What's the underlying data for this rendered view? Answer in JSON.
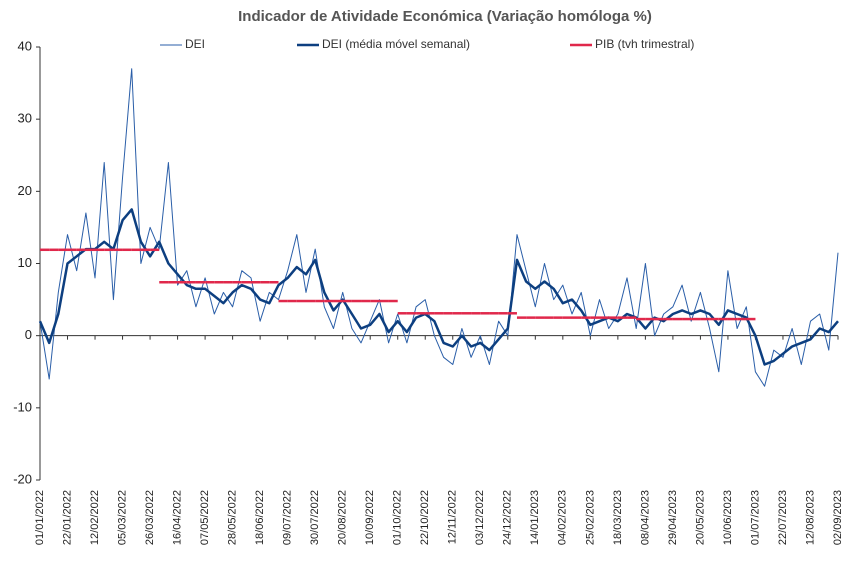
{
  "chart_data": {
    "type": "line",
    "title": "Indicador de Atividade Económica (Variação homóloga %)",
    "x": [
      "01/01/2022",
      "08/01/2022",
      "15/01/2022",
      "22/01/2022",
      "29/01/2022",
      "05/02/2022",
      "12/02/2022",
      "19/02/2022",
      "26/02/2022",
      "05/03/2022",
      "12/03/2022",
      "19/03/2022",
      "26/03/2022",
      "02/04/2022",
      "09/04/2022",
      "16/04/2022",
      "23/04/2022",
      "30/04/2022",
      "07/05/2022",
      "14/05/2022",
      "21/05/2022",
      "28/05/2022",
      "04/06/2022",
      "11/06/2022",
      "18/06/2022",
      "25/06/2022",
      "02/07/2022",
      "09/07/2022",
      "16/07/2022",
      "23/07/2022",
      "30/07/2022",
      "06/08/2022",
      "13/08/2022",
      "20/08/2022",
      "27/08/2022",
      "03/09/2022",
      "10/09/2022",
      "17/09/2022",
      "24/09/2022",
      "01/10/2022",
      "08/10/2022",
      "15/10/2022",
      "22/10/2022",
      "29/10/2022",
      "05/11/2022",
      "12/11/2022",
      "19/11/2022",
      "26/11/2022",
      "03/12/2022",
      "10/12/2022",
      "17/12/2022",
      "24/12/2022",
      "31/12/2022",
      "07/01/2023",
      "14/01/2023",
      "21/01/2023",
      "28/01/2023",
      "04/02/2023",
      "11/02/2023",
      "18/02/2023",
      "25/02/2023",
      "04/03/2023",
      "11/03/2023",
      "18/03/2023",
      "25/03/2023",
      "01/04/2023",
      "08/04/2023",
      "15/04/2023",
      "22/04/2023",
      "29/04/2023",
      "06/05/2023",
      "13/05/2023",
      "20/05/2023",
      "27/05/2023",
      "03/06/2023",
      "10/06/2023",
      "17/06/2023",
      "24/06/2023",
      "01/07/2023",
      "08/07/2023",
      "15/07/2023",
      "22/07/2023",
      "29/07/2023",
      "05/08/2023",
      "12/08/2023",
      "19/08/2023",
      "26/08/2023",
      "02/09/2023"
    ],
    "series": [
      {
        "name": "DEI",
        "color": "#2a5ea8",
        "width": 1,
        "values": [
          2,
          -6,
          6,
          14,
          9,
          17,
          8,
          24,
          5,
          22,
          37,
          10,
          15,
          12,
          24,
          7,
          9,
          4,
          8,
          3,
          6,
          4,
          9,
          8,
          2,
          6,
          5,
          9,
          14,
          6,
          12,
          4,
          1,
          6,
          1,
          -1,
          2,
          5,
          -1,
          3,
          -1,
          4,
          5,
          0,
          -3,
          -4,
          1,
          -3,
          0,
          -4,
          2,
          0,
          14,
          9,
          4,
          10,
          5,
          7,
          3,
          6,
          0,
          5,
          1,
          3,
          8,
          1,
          10,
          0,
          3,
          4,
          7,
          2,
          6,
          1,
          -5,
          9,
          1,
          4,
          -5,
          -7,
          -2,
          -3,
          1,
          -4,
          2,
          3,
          -2,
          11.5
        ]
      },
      {
        "name": "DEI (média móvel semanal)",
        "color": "#0d3f80",
        "width": 2.5,
        "values": [
          2,
          -1,
          3,
          10,
          11,
          12,
          12,
          13,
          12,
          16,
          17.5,
          13,
          11,
          13,
          10,
          8.5,
          7,
          6.5,
          6.5,
          5.5,
          4.5,
          6,
          7,
          6.5,
          5,
          4.5,
          7,
          8,
          9.5,
          8.5,
          10.5,
          6,
          3.5,
          5,
          3,
          1,
          1.5,
          3,
          0.5,
          2,
          0.5,
          2.5,
          3,
          2,
          -1,
          -1.5,
          0,
          -1.5,
          -1,
          -2,
          -0.5,
          1,
          10.5,
          7.5,
          6.5,
          7.5,
          6.5,
          4.5,
          5,
          3.5,
          1.5,
          2,
          2.5,
          2,
          3,
          2.5,
          1,
          2.5,
          2,
          3,
          3.5,
          3,
          3.5,
          3,
          1.5,
          3.5,
          3,
          2.5,
          0,
          -4,
          -3.5,
          -2.5,
          -1.5,
          -1,
          -0.5,
          1,
          0.5,
          2
        ]
      },
      {
        "name": "PIB (tvh trimestral)",
        "color": "#e0284b",
        "width": 2.5,
        "step": true,
        "values": [
          11.9,
          11.9,
          11.9,
          11.9,
          11.9,
          11.9,
          11.9,
          11.9,
          11.9,
          11.9,
          11.9,
          11.9,
          11.9,
          7.4,
          7.4,
          7.4,
          7.4,
          7.4,
          7.4,
          7.4,
          7.4,
          7.4,
          7.4,
          7.4,
          7.4,
          7.4,
          4.8,
          4.8,
          4.8,
          4.8,
          4.8,
          4.8,
          4.8,
          4.8,
          4.8,
          4.8,
          4.8,
          4.8,
          4.8,
          3.1,
          3.1,
          3.1,
          3.1,
          3.1,
          3.1,
          3.1,
          3.1,
          3.1,
          3.1,
          3.1,
          3.1,
          3.1,
          2.5,
          2.5,
          2.5,
          2.5,
          2.5,
          2.5,
          2.5,
          2.5,
          2.5,
          2.5,
          2.5,
          2.5,
          2.5,
          2.3,
          2.3,
          2.3,
          2.3,
          2.3,
          2.3,
          2.3,
          2.3,
          2.3,
          2.3,
          2.3,
          2.3,
          2.3,
          null,
          null,
          null,
          null,
          null,
          null,
          null,
          null,
          null,
          null
        ]
      }
    ],
    "xticks": [
      "01/01/2022",
      "22/01/2022",
      "12/02/2022",
      "05/03/2022",
      "26/03/2022",
      "16/04/2022",
      "07/05/2022",
      "28/05/2022",
      "18/06/2022",
      "09/07/2022",
      "30/07/2022",
      "20/08/2022",
      "10/09/2022",
      "01/10/2022",
      "22/10/2022",
      "12/11/2022",
      "03/12/2022",
      "24/12/2022",
      "14/01/2023",
      "04/02/2023",
      "25/02/2023",
      "18/03/2023",
      "08/04/2023",
      "29/04/2023",
      "20/05/2023",
      "10/06/2023",
      "01/07/2023",
      "22/07/2023",
      "12/08/2023",
      "02/09/2023"
    ],
    "ylim": [
      -20,
      40
    ],
    "yticks": [
      -20,
      -10,
      0,
      10,
      20,
      30,
      40
    ],
    "grid": false,
    "legend": "top"
  }
}
